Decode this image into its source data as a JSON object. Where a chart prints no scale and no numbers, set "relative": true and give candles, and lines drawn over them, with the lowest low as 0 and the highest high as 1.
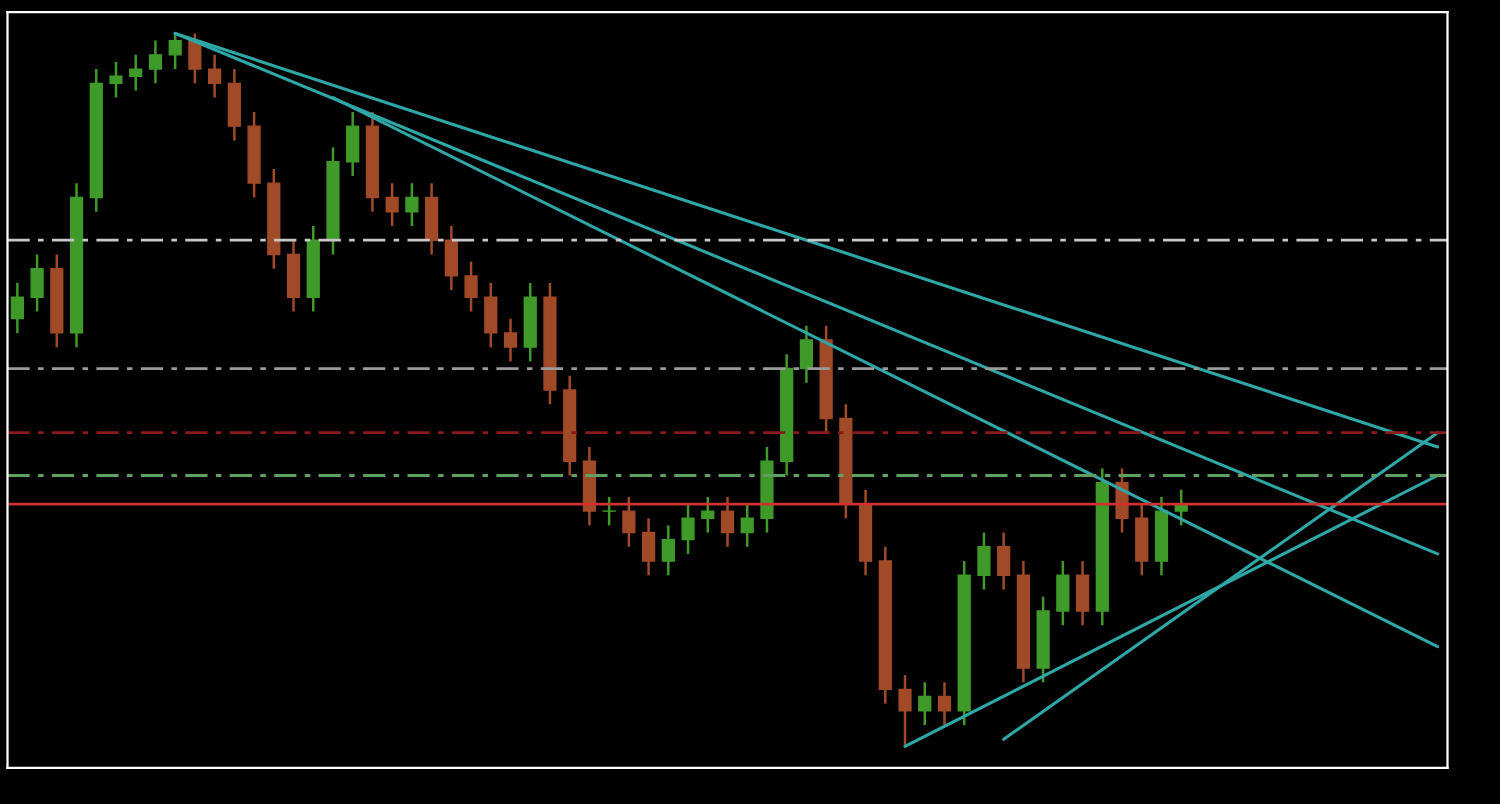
{
  "chart_data": {
    "type": "candlestick",
    "relative": true,
    "grid": false,
    "legend": false,
    "categories": [
      null,
      null,
      null,
      null,
      null,
      null,
      null,
      null,
      null,
      null,
      null,
      null,
      null,
      null,
      null,
      null,
      null,
      null,
      null,
      null,
      null,
      null,
      null,
      null,
      null,
      null,
      null,
      null,
      null,
      null,
      null,
      null,
      null,
      null,
      null,
      null,
      null,
      null,
      null,
      null,
      null,
      null,
      null,
      null,
      null,
      null,
      null,
      null,
      null,
      null,
      null,
      null,
      null,
      null,
      null,
      null,
      null,
      null,
      null,
      null,
      null,
      null,
      null,
      null,
      null,
      null,
      null,
      null,
      null,
      null,
      null,
      null,
      null
    ],
    "ohlc": [
      [
        0.6,
        0.65,
        0.58,
        0.63
      ],
      [
        0.63,
        0.69,
        0.61,
        0.67
      ],
      [
        0.67,
        0.69,
        0.56,
        0.58
      ],
      [
        0.58,
        0.79,
        0.56,
        0.77
      ],
      [
        0.77,
        0.95,
        0.75,
        0.93
      ],
      [
        0.93,
        0.96,
        0.91,
        0.94
      ],
      [
        0.94,
        0.97,
        0.92,
        0.95
      ],
      [
        0.95,
        0.99,
        0.93,
        0.97
      ],
      [
        0.97,
        1.0,
        0.95,
        0.99
      ],
      [
        0.99,
        1.0,
        0.93,
        0.95
      ],
      [
        0.95,
        0.97,
        0.91,
        0.93
      ],
      [
        0.93,
        0.95,
        0.85,
        0.87
      ],
      [
        0.87,
        0.89,
        0.77,
        0.79
      ],
      [
        0.79,
        0.81,
        0.67,
        0.69
      ],
      [
        0.69,
        0.71,
        0.61,
        0.63
      ],
      [
        0.63,
        0.73,
        0.61,
        0.71
      ],
      [
        0.71,
        0.84,
        0.69,
        0.82
      ],
      [
        0.82,
        0.89,
        0.8,
        0.87
      ],
      [
        0.87,
        0.89,
        0.75,
        0.77
      ],
      [
        0.77,
        0.79,
        0.73,
        0.75
      ],
      [
        0.75,
        0.79,
        0.73,
        0.77
      ],
      [
        0.77,
        0.79,
        0.69,
        0.71
      ],
      [
        0.71,
        0.73,
        0.64,
        0.66
      ],
      [
        0.66,
        0.68,
        0.61,
        0.63
      ],
      [
        0.63,
        0.65,
        0.56,
        0.58
      ],
      [
        0.58,
        0.6,
        0.54,
        0.56
      ],
      [
        0.56,
        0.65,
        0.54,
        0.63
      ],
      [
        0.63,
        0.65,
        0.48,
        0.5
      ],
      [
        0.5,
        0.52,
        0.38,
        0.4
      ],
      [
        0.4,
        0.42,
        0.31,
        0.33
      ],
      [
        0.33,
        0.35,
        0.31,
        0.33
      ],
      [
        0.33,
        0.35,
        0.28,
        0.3
      ],
      [
        0.3,
        0.32,
        0.24,
        0.26
      ],
      [
        0.26,
        0.31,
        0.24,
        0.29
      ],
      [
        0.29,
        0.34,
        0.27,
        0.32
      ],
      [
        0.32,
        0.35,
        0.3,
        0.33
      ],
      [
        0.33,
        0.35,
        0.28,
        0.3
      ],
      [
        0.3,
        0.34,
        0.28,
        0.32
      ],
      [
        0.32,
        0.42,
        0.3,
        0.4
      ],
      [
        0.4,
        0.55,
        0.38,
        0.53
      ],
      [
        0.53,
        0.59,
        0.51,
        0.57
      ],
      [
        0.57,
        0.59,
        0.44,
        0.46
      ],
      [
        0.46,
        0.48,
        0.32,
        0.34
      ],
      [
        0.34,
        0.36,
        0.24,
        0.26
      ],
      [
        0.26,
        0.28,
        0.06,
        0.08
      ],
      [
        0.08,
        0.1,
        0.0,
        0.05
      ],
      [
        0.05,
        0.09,
        0.03,
        0.07
      ],
      [
        0.07,
        0.09,
        0.03,
        0.05
      ],
      [
        0.05,
        0.26,
        0.03,
        0.24
      ],
      [
        0.24,
        0.3,
        0.22,
        0.28
      ],
      [
        0.28,
        0.3,
        0.22,
        0.24
      ],
      [
        0.24,
        0.26,
        0.09,
        0.11
      ],
      [
        0.11,
        0.21,
        0.09,
        0.19
      ],
      [
        0.19,
        0.26,
        0.17,
        0.24
      ],
      [
        0.24,
        0.26,
        0.17,
        0.19
      ],
      [
        0.19,
        0.39,
        0.17,
        0.37
      ],
      [
        0.37,
        0.39,
        0.3,
        0.32
      ],
      [
        0.32,
        0.34,
        0.24,
        0.26
      ],
      [
        0.26,
        0.35,
        0.24,
        0.33
      ],
      [
        0.33,
        0.36,
        0.31,
        0.34
      ],
      null,
      null,
      null,
      null,
      null,
      null,
      null,
      null,
      null,
      null,
      null,
      null,
      null
    ],
    "series": [
      {
        "type": "line",
        "color": "#2fa7a7",
        "values": [
          null,
          null,
          null,
          null,
          null,
          null,
          null,
          null,
          1.0,
          null,
          null,
          null,
          null,
          null,
          null,
          null,
          null,
          null,
          null,
          null,
          null,
          null,
          null,
          null,
          null,
          null,
          null,
          null,
          null,
          null,
          null,
          null,
          null,
          null,
          null,
          null,
          null,
          null,
          null,
          null,
          null,
          null,
          null,
          null,
          null,
          null,
          null,
          null,
          null,
          null,
          null,
          null,
          null,
          null,
          null,
          null,
          null,
          null,
          null,
          null,
          null,
          null,
          null,
          null,
          null,
          null,
          null,
          null,
          null,
          null,
          null,
          null,
          0.42
        ]
      },
      {
        "type": "line",
        "color": "#2fa7a7",
        "values": [
          null,
          null,
          null,
          null,
          null,
          null,
          null,
          null,
          1.0,
          null,
          null,
          null,
          null,
          null,
          null,
          null,
          null,
          null,
          null,
          null,
          null,
          null,
          null,
          null,
          null,
          null,
          null,
          null,
          null,
          null,
          null,
          null,
          null,
          null,
          null,
          null,
          null,
          null,
          null,
          null,
          null,
          null,
          null,
          null,
          null,
          null,
          null,
          null,
          null,
          null,
          null,
          null,
          null,
          null,
          null,
          null,
          null,
          null,
          null,
          null,
          null,
          null,
          null,
          null,
          null,
          null,
          null,
          null,
          null,
          null,
          null,
          null,
          0.27
        ]
      },
      {
        "type": "line",
        "color": "#2fa7a7",
        "values": [
          null,
          null,
          null,
          null,
          null,
          null,
          null,
          null,
          null,
          null,
          null,
          null,
          null,
          null,
          null,
          null,
          0.91,
          null,
          null,
          null,
          null,
          null,
          null,
          null,
          null,
          null,
          null,
          null,
          null,
          null,
          null,
          null,
          null,
          null,
          null,
          null,
          null,
          null,
          null,
          null,
          null,
          null,
          null,
          null,
          null,
          null,
          null,
          null,
          null,
          null,
          null,
          null,
          null,
          null,
          null,
          null,
          null,
          null,
          null,
          null,
          null,
          null,
          null,
          null,
          null,
          null,
          null,
          null,
          null,
          null,
          null,
          null,
          0.14
        ]
      },
      {
        "type": "line",
        "color": "#2fa7a7",
        "values": [
          null,
          null,
          null,
          null,
          null,
          null,
          null,
          null,
          null,
          null,
          null,
          null,
          null,
          null,
          null,
          null,
          null,
          null,
          null,
          null,
          null,
          null,
          null,
          null,
          null,
          null,
          null,
          null,
          null,
          null,
          null,
          null,
          null,
          null,
          null,
          null,
          null,
          null,
          null,
          null,
          null,
          null,
          null,
          null,
          null,
          0.0,
          null,
          null,
          null,
          null,
          null,
          null,
          null,
          null,
          null,
          null,
          null,
          null,
          null,
          null,
          null,
          null,
          null,
          null,
          null,
          null,
          null,
          null,
          null,
          null,
          null,
          null,
          0.38
        ]
      },
      {
        "type": "line",
        "color": "#2fa7a7",
        "values": [
          null,
          null,
          null,
          null,
          null,
          null,
          null,
          null,
          null,
          null,
          null,
          null,
          null,
          null,
          null,
          null,
          null,
          null,
          null,
          null,
          null,
          null,
          null,
          null,
          null,
          null,
          null,
          null,
          null,
          null,
          null,
          null,
          null,
          null,
          null,
          null,
          null,
          null,
          null,
          null,
          null,
          null,
          null,
          null,
          null,
          null,
          null,
          null,
          null,
          null,
          0.01,
          null,
          null,
          null,
          null,
          null,
          null,
          null,
          null,
          null,
          null,
          null,
          null,
          null,
          null,
          null,
          null,
          null,
          null,
          null,
          null,
          null,
          0.44
        ]
      }
    ],
    "ref_lines": [
      {
        "axis": "y",
        "value": 0.71,
        "color": "#c8c8c8",
        "line_style": "dashed"
      },
      {
        "axis": "y",
        "value": 0.53,
        "color": "#9a9a9a",
        "line_style": "dashed"
      },
      {
        "axis": "y",
        "value": 0.44,
        "color": "#8b1a1a",
        "line_style": "dashed"
      },
      {
        "axis": "y",
        "value": 0.38,
        "color": "#5fa060",
        "line_style": "dashed"
      },
      {
        "axis": "y",
        "value": 0.34,
        "color": "#d03030",
        "line_style": "solid"
      }
    ]
  }
}
